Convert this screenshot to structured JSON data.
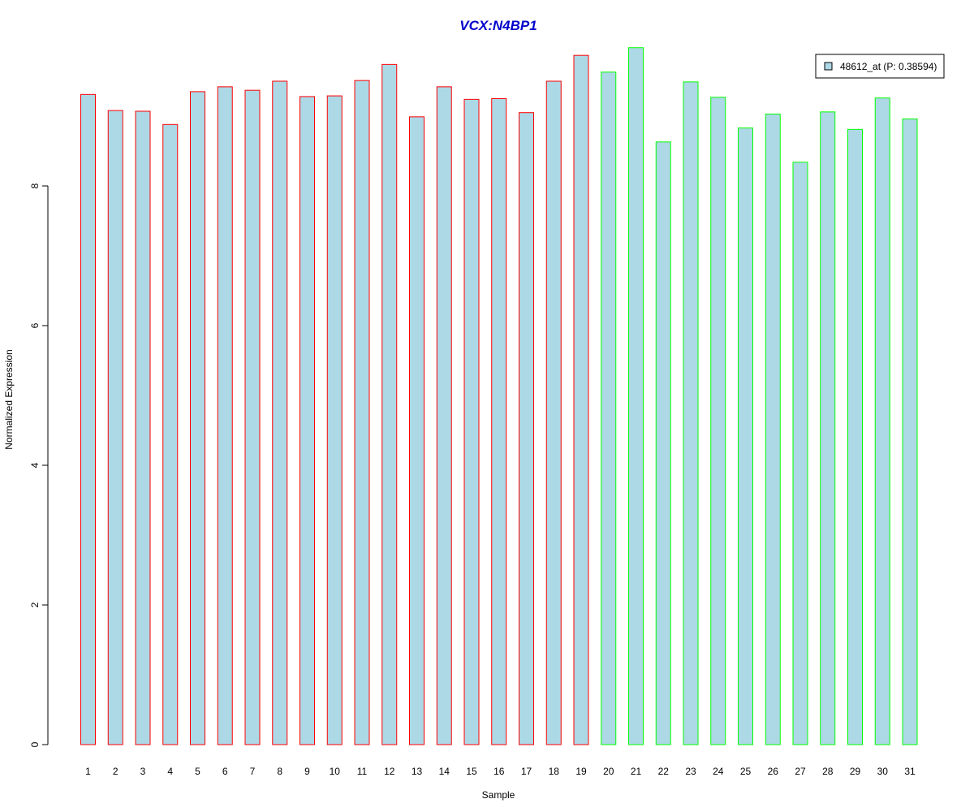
{
  "chart_data": {
    "type": "bar",
    "title": "VCX:N4BP1",
    "xlabel": "Sample",
    "ylabel": "Normalized Expression",
    "ylim": [
      0,
      10
    ],
    "yticks": [
      0,
      2,
      4,
      6,
      8
    ],
    "categories": [
      "1",
      "2",
      "3",
      "4",
      "5",
      "6",
      "7",
      "8",
      "9",
      "10",
      "11",
      "12",
      "13",
      "14",
      "15",
      "16",
      "17",
      "18",
      "19",
      "20",
      "21",
      "22",
      "23",
      "24",
      "25",
      "26",
      "27",
      "28",
      "29",
      "30",
      "31"
    ],
    "series": [
      {
        "name": "48612_at (P: 0.38594)",
        "values": [
          9.31,
          9.08,
          9.07,
          8.88,
          9.35,
          9.42,
          9.37,
          9.5,
          9.28,
          9.29,
          9.51,
          9.74,
          8.99,
          9.42,
          9.24,
          9.25,
          9.05,
          9.5,
          9.87,
          9.63,
          9.98,
          8.63,
          9.49,
          9.27,
          8.83,
          9.03,
          8.34,
          9.06,
          8.81,
          9.26,
          8.96
        ]
      }
    ],
    "groups": [
      {
        "border_color": "#ff0000",
        "sample_range": [
          1,
          19
        ]
      },
      {
        "border_color": "#00ff00",
        "sample_range": [
          20,
          31
        ]
      }
    ],
    "bar_fill_color": "#add8e6",
    "title_color": "#0000cc",
    "legend_position": "top-right",
    "grid": false
  }
}
